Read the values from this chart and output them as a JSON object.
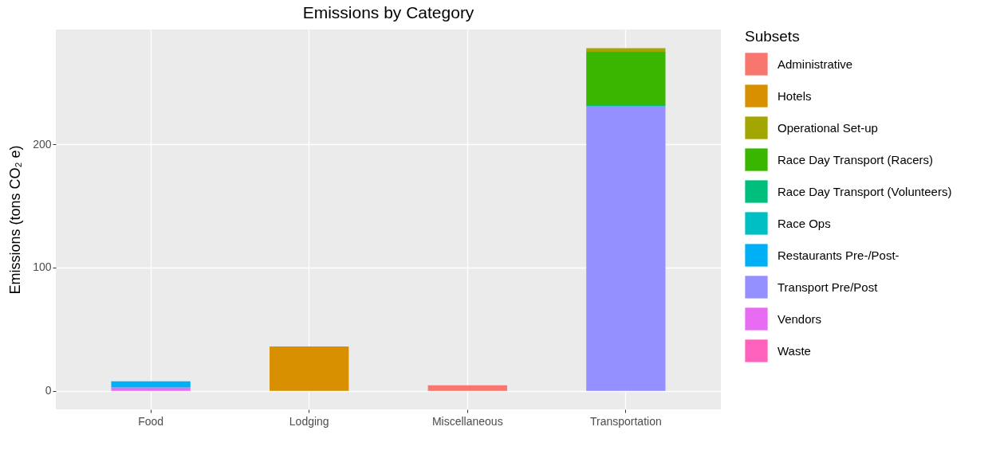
{
  "chart_data": {
    "type": "bar",
    "title": "Emissions by Category",
    "ylabel": "Emissions (tons CO₂ e)",
    "legend_title": "Subsets",
    "categories": [
      "Food",
      "Lodging",
      "Miscellaneous",
      "Transportation"
    ],
    "stacked": true,
    "grid": true,
    "legend": "right",
    "ylim": [
      -15,
      293
    ],
    "yticks": [
      0,
      100,
      200
    ],
    "series": [
      {
        "name": "Waste",
        "color": "#ff62bc",
        "values": [
          null,
          null,
          null,
          null
        ]
      },
      {
        "name": "Vendors",
        "color": "#e76bf3",
        "values": [
          2.8,
          null,
          null,
          null
        ]
      },
      {
        "name": "Transport Pre/Post",
        "color": "#9590ff",
        "values": [
          null,
          null,
          null,
          231
        ]
      },
      {
        "name": "Restaurants Pre-/Post-",
        "color": "#00b0f6",
        "values": [
          5,
          null,
          null,
          null
        ]
      },
      {
        "name": "Race Ops",
        "color": "#00bfc4",
        "values": [
          null,
          null,
          null,
          null
        ]
      },
      {
        "name": "Race Day Transport (Volunteers)",
        "color": "#00bf7d",
        "values": [
          null,
          null,
          null,
          0.6
        ]
      },
      {
        "name": "Race Day Transport (Racers)",
        "color": "#39b600",
        "values": [
          null,
          null,
          null,
          43.4
        ]
      },
      {
        "name": "Operational Set-up",
        "color": "#a3a500",
        "values": [
          null,
          null,
          null,
          2.8
        ]
      },
      {
        "name": "Hotels",
        "color": "#d89000",
        "values": [
          null,
          36,
          null,
          null
        ]
      },
      {
        "name": "Administrative",
        "color": "#f8766d",
        "values": [
          null,
          null,
          4.5,
          null
        ]
      }
    ]
  }
}
